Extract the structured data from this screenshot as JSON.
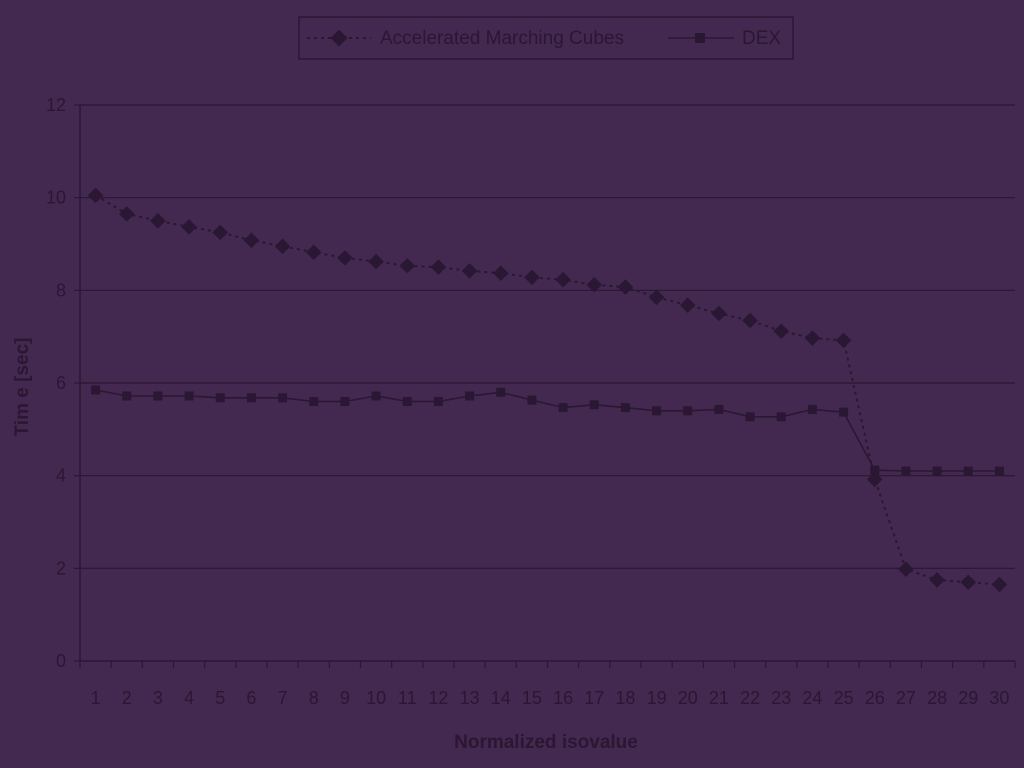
{
  "colors": {
    "background": "#43294f",
    "ink": "#2a1733",
    "grid": "#2a1733"
  },
  "chart_data": {
    "type": "line",
    "title": "",
    "xlabel": "Normalized isovalue",
    "ylabel": "Tim e [sec]",
    "ylim": [
      0,
      12
    ],
    "y_ticks": [
      0,
      2,
      4,
      6,
      8,
      10,
      12
    ],
    "categories": [
      "1",
      "2",
      "3",
      "4",
      "5",
      "6",
      "7",
      "8",
      "9",
      "10",
      "11",
      "12",
      "13",
      "14",
      "15",
      "16",
      "17",
      "18",
      "19",
      "20",
      "21",
      "22",
      "23",
      "24",
      "25",
      "26",
      "27",
      "28",
      "29",
      "30"
    ],
    "grid": "horizontal",
    "legend_position": "top-center",
    "series": [
      {
        "name": "Accelerated Marching Cubes",
        "marker": "diamond",
        "line_style": "dotted",
        "values": [
          10.05,
          9.65,
          9.5,
          9.37,
          9.25,
          9.08,
          8.95,
          8.82,
          8.7,
          8.62,
          8.53,
          8.5,
          8.42,
          8.37,
          8.28,
          8.23,
          8.12,
          8.07,
          7.85,
          7.68,
          7.5,
          7.35,
          7.12,
          6.97,
          6.92,
          3.92,
          1.98,
          1.75,
          1.7,
          1.65
        ]
      },
      {
        "name": "DEX",
        "marker": "square",
        "line_style": "solid",
        "values": [
          5.85,
          5.72,
          5.72,
          5.72,
          5.68,
          5.68,
          5.68,
          5.6,
          5.6,
          5.72,
          5.6,
          5.6,
          5.72,
          5.8,
          5.63,
          5.47,
          5.53,
          5.47,
          5.4,
          5.4,
          5.43,
          5.27,
          5.27,
          5.43,
          5.37,
          4.12,
          4.1,
          4.1,
          4.1,
          4.1
        ]
      }
    ]
  }
}
